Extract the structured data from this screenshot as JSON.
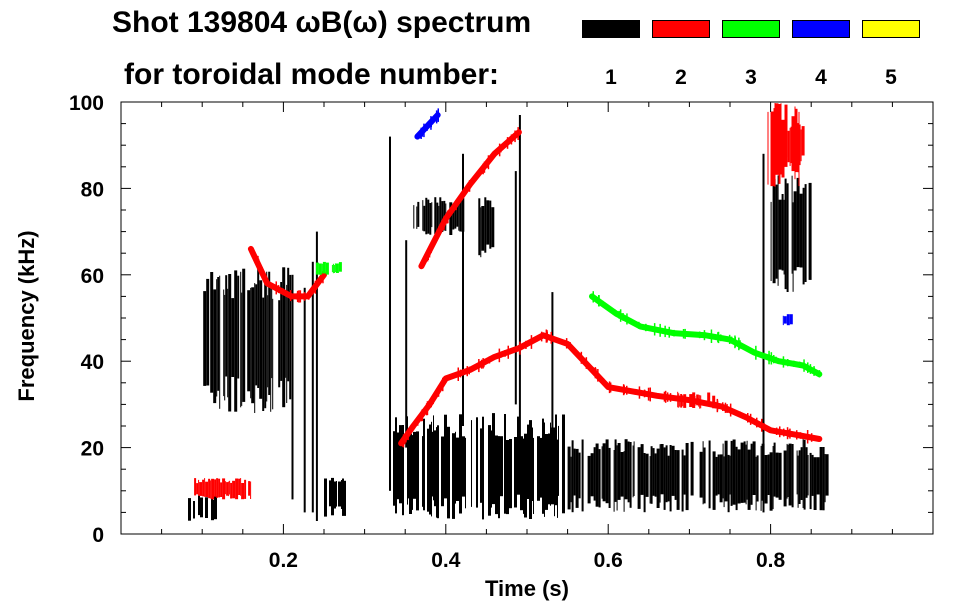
{
  "title": {
    "line1": "Shot 139804 ωB(ω) spectrum",
    "line2": "for toroidal mode number:"
  },
  "legend": [
    {
      "label": "1",
      "color": "#000000"
    },
    {
      "label": "2",
      "color": "#ff0000"
    },
    {
      "label": "3",
      "color": "#00ff00"
    },
    {
      "label": "4",
      "color": "#0000ff"
    },
    {
      "label": "5",
      "color": "#ffff00"
    }
  ],
  "chart_data": {
    "type": "heatmap",
    "title": "Shot 139804 ωB(ω) spectrum for toroidal mode number:",
    "xlabel": "Time (s)",
    "ylabel": "Frequency (kHz)",
    "xlim": [
      0.0,
      1.0
    ],
    "ylim": [
      0,
      100
    ],
    "x_ticks": [
      0.2,
      0.4,
      0.6,
      0.8
    ],
    "x_tick_labels": [
      "0.2",
      "0.4",
      "0.6",
      "0.8"
    ],
    "y_ticks": [
      0,
      20,
      40,
      60,
      80,
      100
    ],
    "y_tick_labels": [
      "0",
      "20",
      "40",
      "60",
      "80",
      "100"
    ],
    "grid": false,
    "series": [
      {
        "name": "n=1",
        "color": "#000000",
        "regions": [
          {
            "t0": 0.1,
            "t1": 0.21,
            "f0": 28,
            "f1": 62
          },
          {
            "t0": 0.08,
            "t1": 0.12,
            "f0": 3,
            "f1": 9
          },
          {
            "t0": 0.25,
            "t1": 0.28,
            "f0": 4,
            "f1": 14
          },
          {
            "t0": 0.335,
            "t1": 0.545,
            "f0": 3,
            "f1": 28
          },
          {
            "t0": 0.55,
            "t1": 0.87,
            "f0": 5,
            "f1": 22
          },
          {
            "t0": 0.36,
            "t1": 0.42,
            "f0": 69,
            "f1": 78
          },
          {
            "t0": 0.44,
            "t1": 0.46,
            "f0": 64,
            "f1": 78
          },
          {
            "t0": 0.8,
            "t1": 0.85,
            "f0": 55,
            "f1": 84
          }
        ],
        "streaks": [
          {
            "t": 0.21,
            "f0": 8,
            "f1": 60
          },
          {
            "t": 0.225,
            "f0": 5,
            "f1": 57
          },
          {
            "t": 0.235,
            "f0": 5,
            "f1": 63
          },
          {
            "t": 0.24,
            "f0": 3,
            "f1": 70
          },
          {
            "t": 0.33,
            "f0": 10,
            "f1": 92
          },
          {
            "t": 0.35,
            "f0": 20,
            "f1": 68
          },
          {
            "t": 0.42,
            "f0": 25,
            "f1": 88
          },
          {
            "t": 0.485,
            "f0": 30,
            "f1": 84
          },
          {
            "t": 0.49,
            "f0": 20,
            "f1": 97
          },
          {
            "t": 0.53,
            "f0": 22,
            "f1": 56
          },
          {
            "t": 0.79,
            "f0": 5,
            "f1": 88
          }
        ]
      },
      {
        "name": "n=2",
        "color": "#ff0000",
        "ridge": [
          [
            0.345,
            21
          ],
          [
            0.36,
            25
          ],
          [
            0.38,
            30
          ],
          [
            0.4,
            36
          ],
          [
            0.43,
            38
          ],
          [
            0.46,
            41
          ],
          [
            0.49,
            43
          ],
          [
            0.52,
            46
          ],
          [
            0.55,
            44
          ],
          [
            0.58,
            38
          ],
          [
            0.6,
            34
          ],
          [
            0.63,
            33
          ],
          [
            0.66,
            32
          ],
          [
            0.7,
            31
          ],
          [
            0.74,
            29.5
          ],
          [
            0.77,
            27
          ],
          [
            0.8,
            24
          ],
          [
            0.83,
            23
          ],
          [
            0.86,
            22
          ]
        ],
        "ridge2": [
          [
            0.37,
            62
          ],
          [
            0.4,
            73
          ],
          [
            0.43,
            81
          ],
          [
            0.46,
            88
          ],
          [
            0.49,
            93
          ]
        ],
        "ridge3": [
          [
            0.16,
            66
          ],
          [
            0.18,
            58
          ],
          [
            0.21,
            55
          ],
          [
            0.23,
            55
          ],
          [
            0.25,
            60
          ]
        ],
        "regions": [
          {
            "t0": 0.795,
            "t1": 0.835,
            "f0": 80,
            "f1": 100
          },
          {
            "t0": 0.8,
            "t1": 0.84,
            "f0": 85,
            "f1": 96
          },
          {
            "t0": 0.09,
            "t1": 0.16,
            "f0": 8,
            "f1": 13
          },
          {
            "t0": 0.685,
            "t1": 0.73,
            "f0": 29,
            "f1": 33
          }
        ]
      },
      {
        "name": "n=3",
        "color": "#00ff00",
        "ridge": [
          [
            0.58,
            55
          ],
          [
            0.61,
            51
          ],
          [
            0.64,
            48
          ],
          [
            0.68,
            46.5
          ],
          [
            0.72,
            46
          ],
          [
            0.75,
            45
          ],
          [
            0.78,
            42
          ],
          [
            0.81,
            40
          ],
          [
            0.84,
            39
          ],
          [
            0.86,
            37
          ]
        ],
        "regions": [
          {
            "t0": 0.24,
            "t1": 0.27,
            "f0": 60,
            "f1": 63
          }
        ]
      },
      {
        "name": "n=4",
        "color": "#0000ff",
        "ridge": [
          [
            0.365,
            92
          ],
          [
            0.38,
            95
          ],
          [
            0.39,
            97
          ]
        ],
        "regions": [
          {
            "t0": 0.815,
            "t1": 0.825,
            "f0": 48,
            "f1": 51
          }
        ]
      },
      {
        "name": "n=5",
        "color": "#ffff00",
        "regions": []
      }
    ]
  }
}
